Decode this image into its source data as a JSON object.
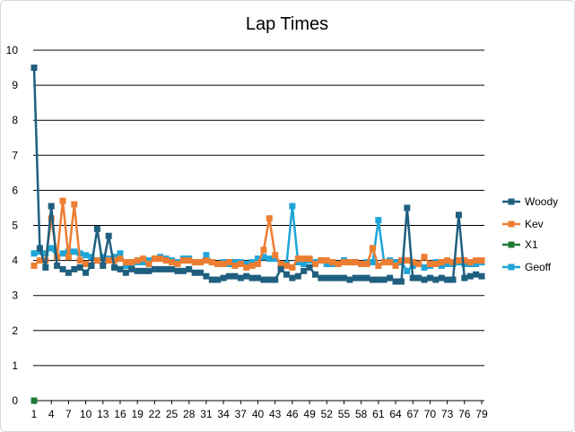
{
  "chart_data": {
    "type": "line",
    "title": "Lap Times",
    "xlabel": "",
    "ylabel": "",
    "ylim": [
      0,
      10
    ],
    "y_ticks": [
      0,
      1,
      2,
      3,
      4,
      5,
      6,
      7,
      8,
      9,
      10
    ],
    "x_tick_labels": [
      1,
      4,
      7,
      10,
      13,
      16,
      19,
      22,
      25,
      28,
      31,
      34,
      37,
      40,
      43,
      46,
      49,
      52,
      55,
      58,
      61,
      64,
      67,
      70,
      73,
      76,
      79
    ],
    "grid": "horizontal",
    "legend_position": "right",
    "series": [
      {
        "name": "Woody",
        "color": "#1f5f7f",
        "values": [
          9.5,
          4.35,
          3.8,
          5.55,
          3.85,
          3.75,
          3.65,
          3.75,
          3.8,
          3.65,
          3.85,
          4.9,
          3.85,
          4.7,
          3.8,
          3.75,
          3.65,
          3.75,
          3.7,
          3.7,
          3.7,
          3.75,
          3.75,
          3.75,
          3.75,
          3.7,
          3.7,
          3.75,
          3.65,
          3.65,
          3.55,
          3.45,
          3.45,
          3.5,
          3.55,
          3.55,
          3.5,
          3.55,
          3.5,
          3.5,
          3.45,
          3.45,
          3.45,
          3.75,
          3.6,
          3.5,
          3.55,
          3.7,
          3.8,
          3.6,
          3.5,
          3.5,
          3.5,
          3.5,
          3.5,
          3.45,
          3.5,
          3.5,
          3.5,
          3.45,
          3.45,
          3.45,
          3.5,
          3.4,
          3.4,
          5.5,
          3.5,
          3.5,
          3.45,
          3.5,
          3.45,
          3.5,
          3.45,
          3.45,
          5.3,
          3.5,
          3.55,
          3.6,
          3.55
        ]
      },
      {
        "name": "Kev",
        "color": "#ed7d31",
        "values": [
          3.85,
          4.0,
          4.0,
          5.2,
          4.1,
          5.7,
          4.1,
          5.6,
          4.0,
          3.9,
          3.85,
          4.0,
          3.85,
          4.0,
          4.0,
          4.05,
          3.95,
          3.95,
          4.0,
          4.05,
          3.9,
          4.05,
          4.05,
          4.0,
          3.95,
          3.9,
          4.0,
          4.0,
          3.95,
          3.95,
          4.0,
          3.95,
          3.9,
          3.9,
          3.95,
          3.85,
          3.9,
          3.8,
          3.85,
          3.9,
          4.3,
          5.2,
          4.15,
          3.9,
          3.85,
          3.8,
          4.05,
          4.05,
          4.05,
          3.9,
          4.0,
          4.0,
          3.95,
          3.9,
          3.95,
          3.95,
          3.95,
          3.9,
          3.9,
          4.35,
          3.85,
          3.95,
          3.95,
          3.85,
          4.0,
          4.0,
          3.95,
          3.9,
          4.1,
          3.9,
          3.9,
          3.95,
          4.0,
          3.95,
          4.0,
          4.0,
          3.95,
          4.0,
          4.0
        ]
      },
      {
        "name": "X1",
        "color": "#217a33",
        "values": [
          0
        ]
      },
      {
        "name": "Geoff",
        "color": "#1fa5d8",
        "values": [
          4.2,
          4.25,
          4.2,
          4.35,
          4.1,
          4.2,
          4.25,
          4.25,
          4.2,
          4.15,
          4.1,
          4.0,
          4.1,
          4.05,
          4.1,
          4.2,
          3.85,
          3.9,
          3.95,
          3.95,
          4.0,
          4.05,
          4.1,
          4.05,
          4.0,
          3.95,
          4.05,
          4.05,
          3.95,
          3.95,
          4.15,
          3.95,
          3.9,
          3.95,
          3.9,
          3.95,
          3.95,
          3.9,
          3.95,
          4.05,
          4.1,
          4.05,
          4.05,
          3.9,
          3.9,
          5.55,
          3.95,
          3.9,
          4.0,
          3.95,
          4.0,
          3.9,
          3.9,
          3.9,
          4.0,
          3.95,
          3.95,
          3.9,
          3.95,
          3.95,
          5.15,
          3.95,
          4.0,
          3.95,
          3.95,
          3.7,
          3.85,
          3.9,
          3.8,
          3.85,
          3.95,
          3.85,
          3.9,
          3.9,
          3.95,
          3.9,
          3.9,
          3.9,
          3.95
        ]
      }
    ]
  }
}
